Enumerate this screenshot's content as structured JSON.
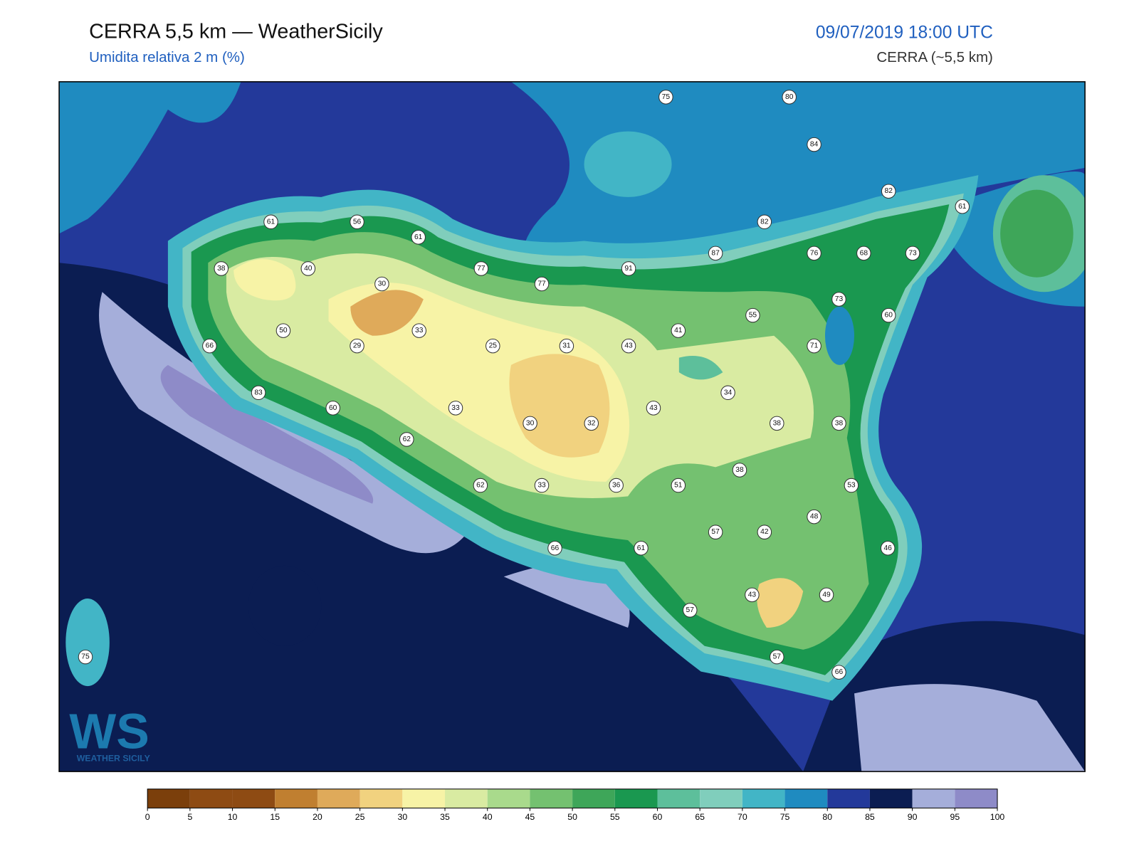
{
  "header": {
    "title": "CERRA 5,5 km — WeatherSicily",
    "subtitle": "Umidita relativa 2 m (%)",
    "datetime": "09/07/2019 18:00 UTC",
    "model": "CERRA (~5,5 km)"
  },
  "logo": {
    "mark": "WS",
    "text": "WEATHER SICILY"
  },
  "stations": [
    75,
    80,
    84,
    82,
    61,
    82,
    61,
    56,
    61,
    87,
    76,
    68,
    73,
    38,
    40,
    77,
    91,
    77,
    30,
    73,
    55,
    60,
    41,
    50,
    33,
    66,
    29,
    25,
    31,
    43,
    71,
    34,
    83,
    60,
    33,
    43,
    30,
    32,
    38,
    38,
    62,
    38,
    62,
    33,
    36,
    51,
    53,
    48,
    57,
    42,
    66,
    61,
    46,
    57,
    43,
    49,
    57,
    66,
    75
  ],
  "colorbar": {
    "ticks": [
      0,
      5,
      10,
      15,
      20,
      25,
      30,
      35,
      40,
      45,
      50,
      55,
      60,
      65,
      70,
      75,
      80,
      85,
      90,
      95,
      100
    ],
    "colors": [
      "#7b3f0b",
      "#8e4b13",
      "#8e4b13",
      "#c07f30",
      "#dfaa5a",
      "#f1d27f",
      "#f7f3a6",
      "#d9eba2",
      "#a9da8c",
      "#74c170",
      "#3ea659",
      "#1a9850",
      "#5dbf9b",
      "#80cebc",
      "#42b5c6",
      "#1f8bc0",
      "#23399a",
      "#0b1d52",
      "#a5aeda",
      "#8e8bc8"
    ]
  }
}
